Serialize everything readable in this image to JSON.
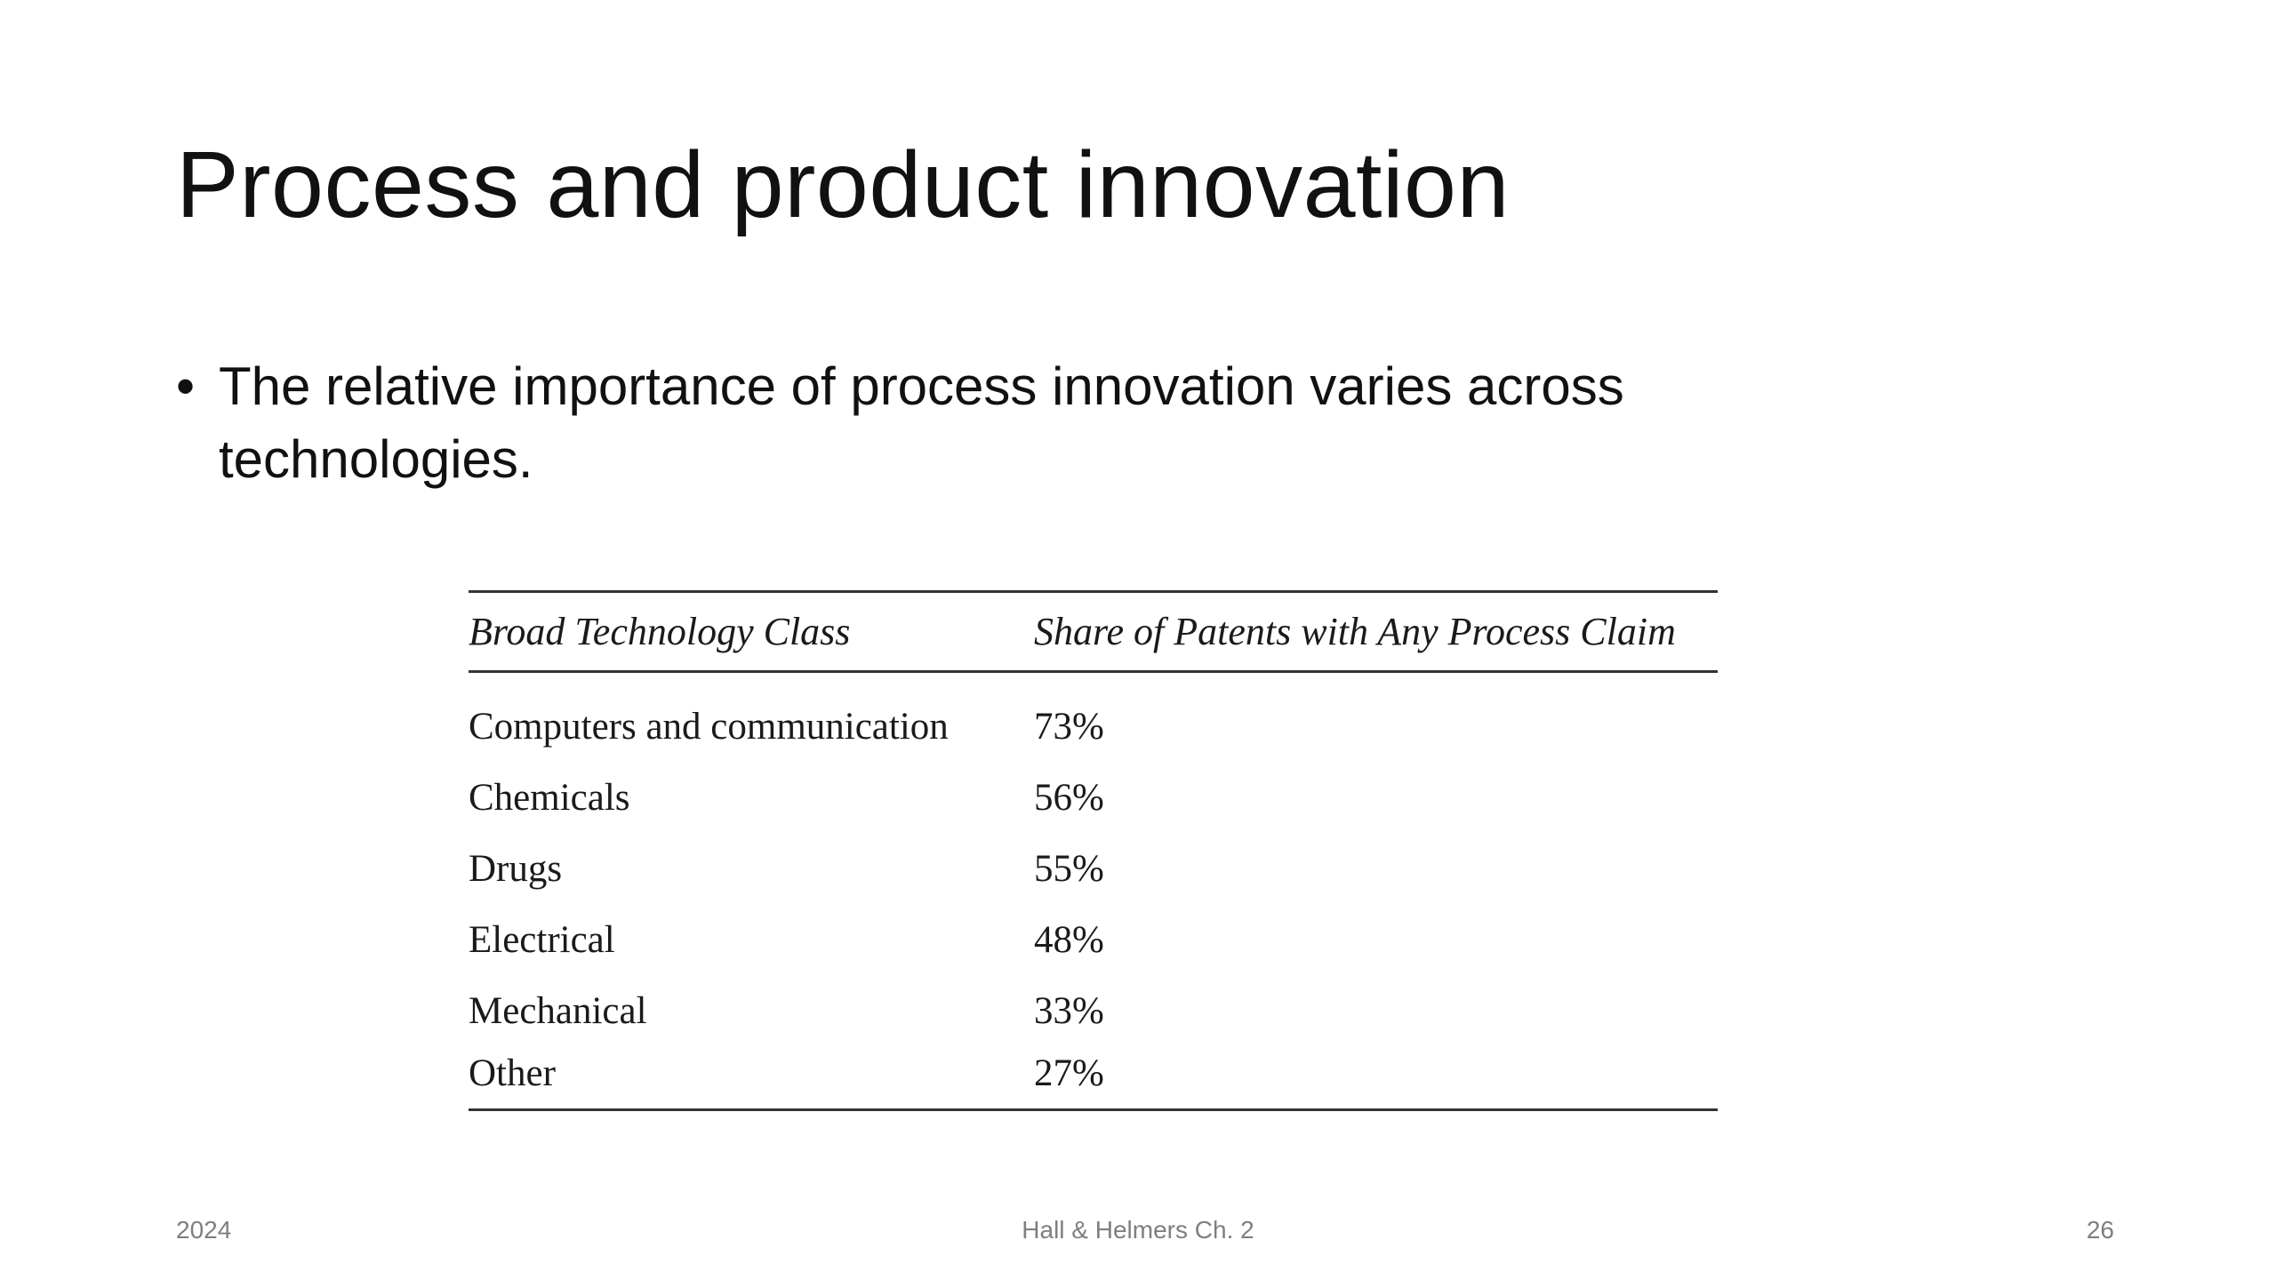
{
  "slide": {
    "title": "Process and product innovation",
    "bullets": [
      {
        "marker": "•",
        "text": "The relative importance of process innovation varies across technologies."
      }
    ],
    "table": {
      "headers": [
        "Broad Technology Class",
        "Share of Patents with Any Process Claim"
      ],
      "rows": [
        [
          "Computers and communication",
          "73%"
        ],
        [
          "Chemicals",
          "56%"
        ],
        [
          "Drugs",
          "55%"
        ],
        [
          "Electrical",
          "48%"
        ],
        [
          "Mechanical",
          "33%"
        ],
        [
          "Other",
          "27%"
        ]
      ]
    },
    "footer": {
      "date": "2024",
      "center": "Hall & Helmers Ch. 2",
      "page_number": "26"
    }
  }
}
